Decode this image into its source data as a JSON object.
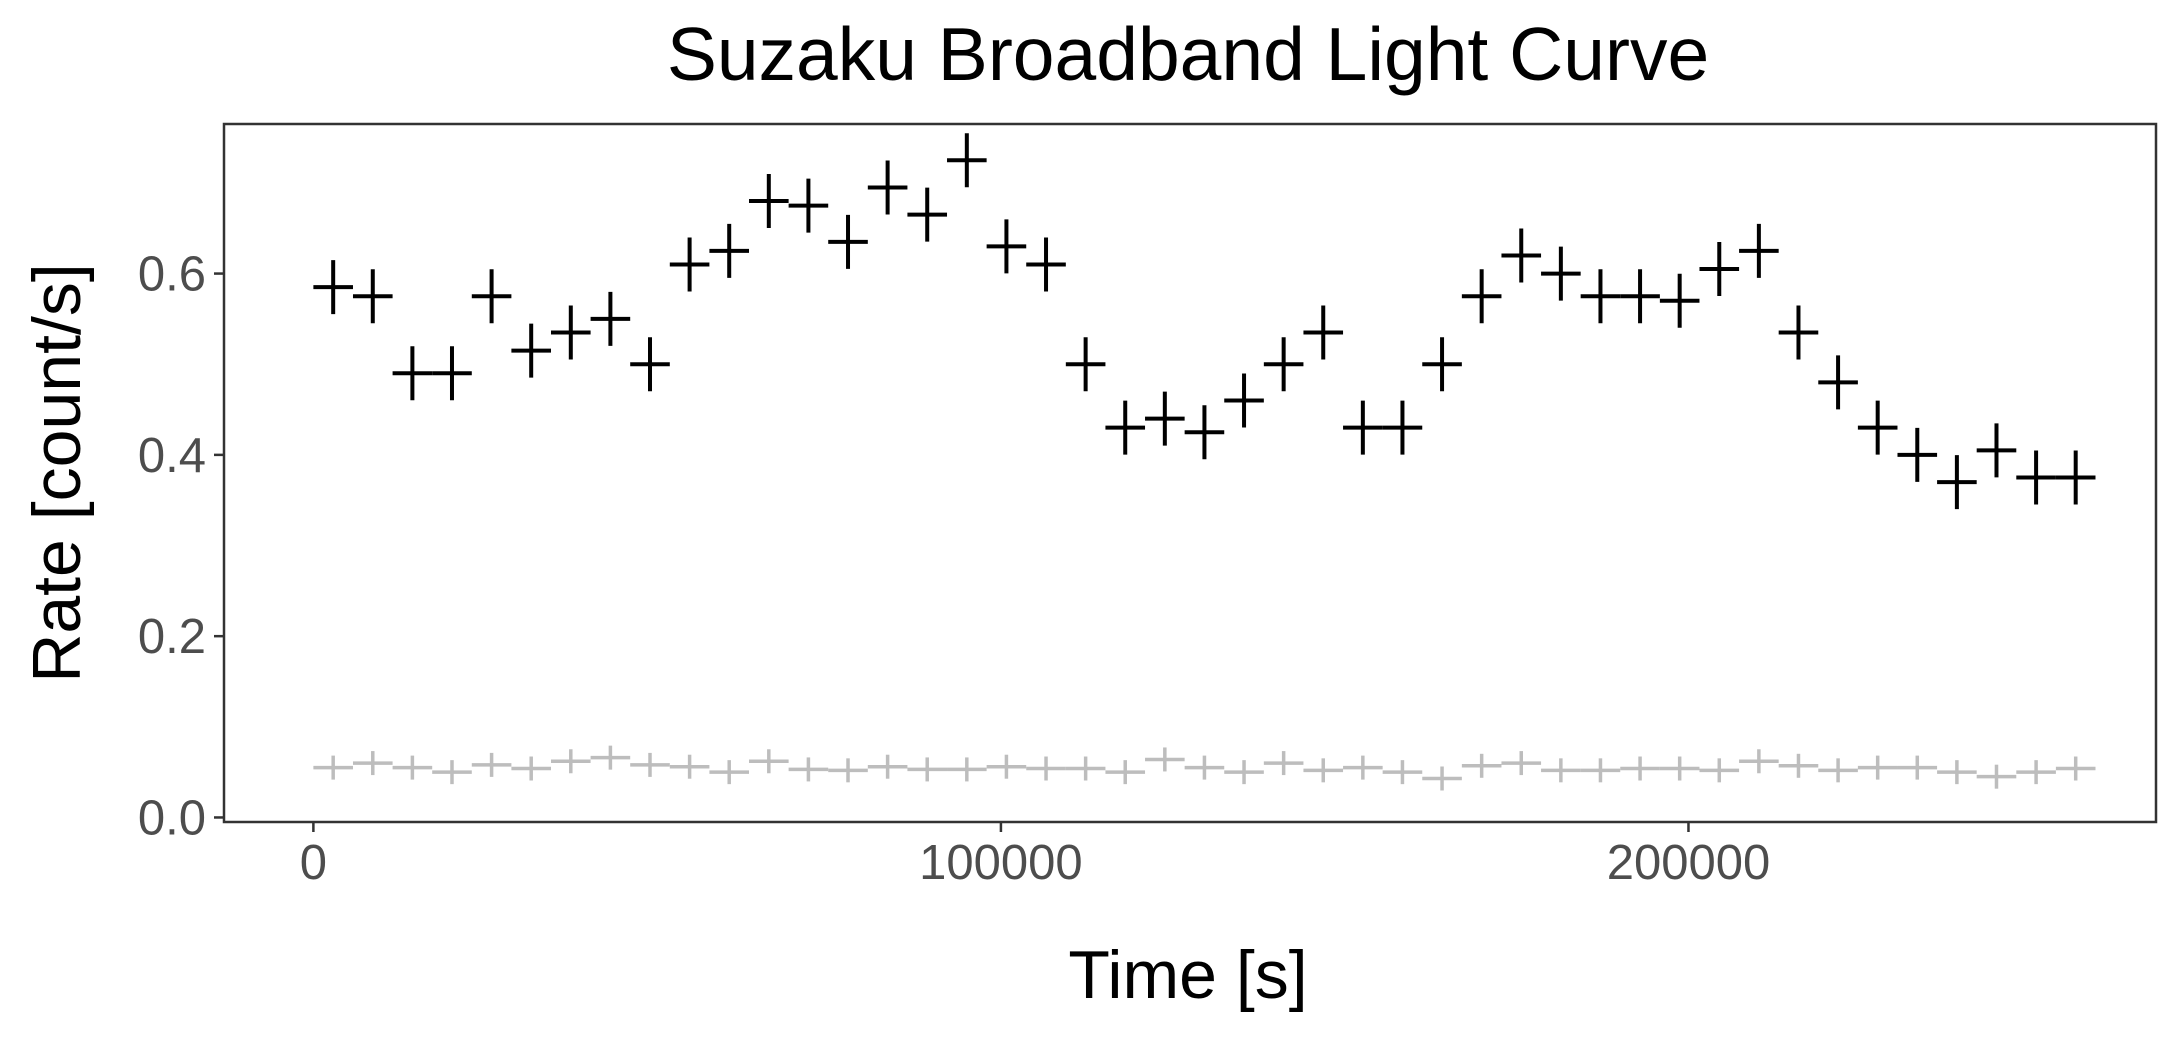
{
  "chart_data": {
    "type": "scatter",
    "title": "Suzaku Broadband Light Curve",
    "xlabel": "Time [s]",
    "ylabel": "Rate [count/s]",
    "xlim": [
      -13000,
      268000
    ],
    "ylim": [
      -0.005,
      0.765
    ],
    "x_ticks": [
      0,
      100000,
      200000
    ],
    "x_tick_labels": [
      "0",
      "100000",
      "200000"
    ],
    "y_ticks": [
      0.0,
      0.2,
      0.4,
      0.6
    ],
    "y_tick_labels": [
      "0.0",
      "0.2",
      "0.4",
      "0.6"
    ],
    "grid": false,
    "marker": "cross",
    "x_error": 2880,
    "series": [
      {
        "color": "#000000",
        "points": [
          [
            2880,
            0.585
          ],
          [
            8640,
            0.575
          ],
          [
            14400,
            0.49
          ],
          [
            20160,
            0.49
          ],
          [
            25920,
            0.575
          ],
          [
            31680,
            0.515
          ],
          [
            37440,
            0.535
          ],
          [
            43200,
            0.55
          ],
          [
            48960,
            0.5
          ],
          [
            54720,
            0.61
          ],
          [
            60480,
            0.625
          ],
          [
            66240,
            0.68
          ],
          [
            72000,
            0.675
          ],
          [
            77760,
            0.635
          ],
          [
            83520,
            0.695
          ],
          [
            89280,
            0.665
          ],
          [
            95040,
            0.725
          ],
          [
            100800,
            0.63
          ],
          [
            106560,
            0.61
          ],
          [
            112320,
            0.5
          ],
          [
            118080,
            0.43
          ],
          [
            123840,
            0.44
          ],
          [
            129600,
            0.425
          ],
          [
            135360,
            0.46
          ],
          [
            141120,
            0.5
          ],
          [
            146880,
            0.535
          ],
          [
            152640,
            0.43
          ],
          [
            158400,
            0.43
          ],
          [
            164160,
            0.5
          ],
          [
            169920,
            0.575
          ],
          [
            175680,
            0.62
          ],
          [
            181440,
            0.6
          ],
          [
            187200,
            0.575
          ],
          [
            192960,
            0.575
          ],
          [
            198720,
            0.57
          ],
          [
            204480,
            0.605
          ],
          [
            210240,
            0.625
          ],
          [
            216000,
            0.535
          ],
          [
            221760,
            0.48
          ],
          [
            227520,
            0.43
          ],
          [
            233280,
            0.4
          ],
          [
            239040,
            0.37
          ],
          [
            244800,
            0.405
          ],
          [
            250560,
            0.375
          ],
          [
            256320,
            0.375
          ]
        ]
      },
      {
        "color": "#bdbdbd",
        "points": [
          [
            2880,
            0.055
          ],
          [
            8640,
            0.06
          ],
          [
            14400,
            0.055
          ],
          [
            20160,
            0.05
          ],
          [
            25920,
            0.058
          ],
          [
            31680,
            0.054
          ],
          [
            37440,
            0.062
          ],
          [
            43200,
            0.066
          ],
          [
            48960,
            0.058
          ],
          [
            54720,
            0.056
          ],
          [
            60480,
            0.05
          ],
          [
            66240,
            0.062
          ],
          [
            72000,
            0.053
          ],
          [
            77760,
            0.052
          ],
          [
            83520,
            0.056
          ],
          [
            89280,
            0.053
          ],
          [
            95040,
            0.053
          ],
          [
            100800,
            0.056
          ],
          [
            106560,
            0.054
          ],
          [
            112320,
            0.054
          ],
          [
            118080,
            0.05
          ],
          [
            123840,
            0.064
          ],
          [
            129600,
            0.055
          ],
          [
            135360,
            0.05
          ],
          [
            141120,
            0.06
          ],
          [
            146880,
            0.052
          ],
          [
            152640,
            0.055
          ],
          [
            158400,
            0.05
          ],
          [
            164160,
            0.043
          ],
          [
            169920,
            0.057
          ],
          [
            175680,
            0.06
          ],
          [
            181440,
            0.052
          ],
          [
            187200,
            0.052
          ],
          [
            192960,
            0.054
          ],
          [
            198720,
            0.054
          ],
          [
            204480,
            0.052
          ],
          [
            210240,
            0.062
          ],
          [
            216000,
            0.057
          ],
          [
            221760,
            0.052
          ],
          [
            227520,
            0.055
          ],
          [
            233280,
            0.055
          ],
          [
            239040,
            0.05
          ],
          [
            244800,
            0.045
          ],
          [
            250560,
            0.05
          ],
          [
            256320,
            0.054
          ]
        ]
      }
    ]
  }
}
